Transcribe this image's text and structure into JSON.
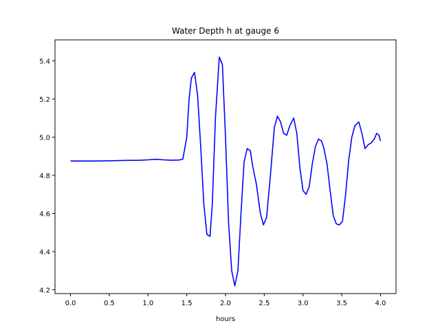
{
  "chart_data": {
    "type": "line",
    "title": "Water Depth h at gauge 6",
    "xlabel": "hours",
    "ylabel": "",
    "xlim": [
      -0.2,
      4.2
    ],
    "ylim": [
      4.18,
      5.51
    ],
    "xticks": [
      0.0,
      0.5,
      1.0,
      1.5,
      2.0,
      2.5,
      3.0,
      3.5,
      4.0
    ],
    "xtick_labels": [
      "0.0",
      "0.5",
      "1.0",
      "1.5",
      "2.0",
      "2.5",
      "3.0",
      "3.5",
      "4.0"
    ],
    "yticks": [
      4.2,
      4.4,
      4.6,
      4.8,
      5.0,
      5.2,
      5.4
    ],
    "ytick_labels": [
      "4.2",
      "4.4",
      "4.6",
      "4.8",
      "5.0",
      "5.2",
      "5.4"
    ],
    "grid": false,
    "legend": "none",
    "series": [
      {
        "color": "#0000ff",
        "x": [
          0.0,
          0.3,
          0.5,
          0.7,
          0.9,
          1.0,
          1.1,
          1.2,
          1.3,
          1.4,
          1.45,
          1.5,
          1.53,
          1.56,
          1.6,
          1.64,
          1.68,
          1.72,
          1.76,
          1.8,
          1.83,
          1.87,
          1.92,
          1.96,
          2.0,
          2.04,
          2.08,
          2.12,
          2.16,
          2.2,
          2.24,
          2.28,
          2.32,
          2.35,
          2.4,
          2.45,
          2.49,
          2.53,
          2.58,
          2.63,
          2.67,
          2.71,
          2.75,
          2.79,
          2.83,
          2.88,
          2.92,
          2.96,
          3.0,
          3.04,
          3.08,
          3.12,
          3.16,
          3.2,
          3.24,
          3.27,
          3.31,
          3.35,
          3.39,
          3.43,
          3.47,
          3.51,
          3.55,
          3.59,
          3.63,
          3.67,
          3.72,
          3.76,
          3.8,
          3.84,
          3.88,
          3.92,
          3.95,
          3.98,
          4.0
        ],
        "y": [
          4.875,
          4.875,
          4.876,
          4.878,
          4.879,
          4.881,
          4.884,
          4.881,
          4.879,
          4.88,
          4.885,
          5.0,
          5.2,
          5.31,
          5.34,
          5.22,
          4.95,
          4.65,
          4.49,
          4.48,
          4.65,
          5.1,
          5.42,
          5.38,
          5.0,
          4.55,
          4.3,
          4.22,
          4.3,
          4.6,
          4.87,
          4.94,
          4.93,
          4.85,
          4.75,
          4.6,
          4.54,
          4.58,
          4.8,
          5.05,
          5.11,
          5.08,
          5.02,
          5.01,
          5.06,
          5.1,
          5.02,
          4.84,
          4.72,
          4.7,
          4.74,
          4.86,
          4.95,
          4.99,
          4.98,
          4.94,
          4.86,
          4.72,
          4.59,
          4.545,
          4.54,
          4.56,
          4.7,
          4.88,
          5.0,
          5.06,
          5.08,
          5.02,
          4.94,
          4.96,
          4.97,
          4.99,
          5.02,
          5.01,
          4.98
        ]
      }
    ]
  }
}
